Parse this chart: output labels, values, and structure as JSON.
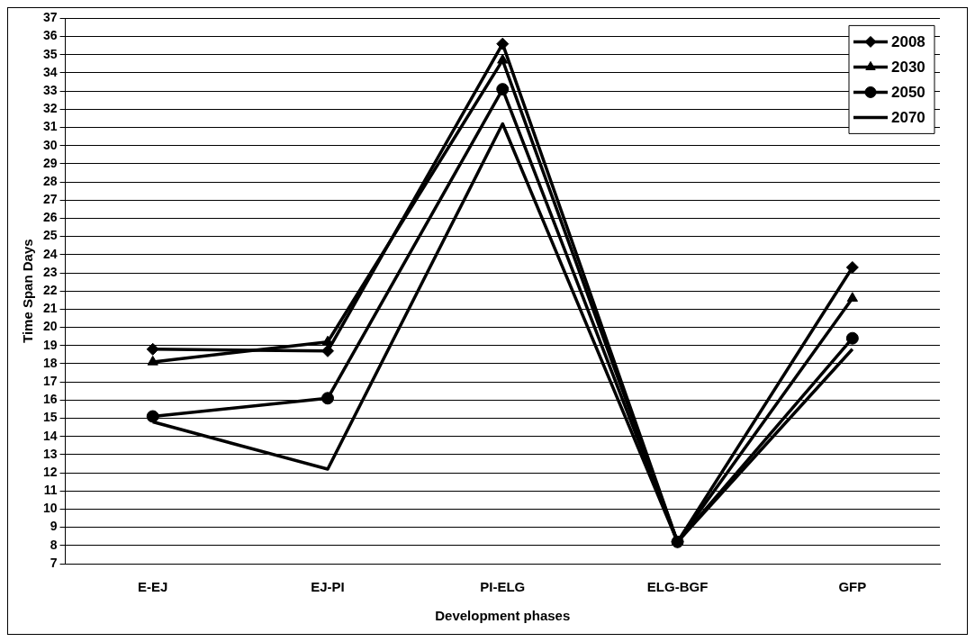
{
  "chart_data": {
    "type": "line",
    "xlabel": "Development phases",
    "ylabel": "Time Span Days",
    "categories": [
      "E-EJ",
      "EJ-PI",
      "PI-ELG",
      "ELG-BGF",
      "GFP"
    ],
    "series": [
      {
        "name": "2008",
        "color": "#000000",
        "marker": "diamond",
        "values": [
          18.8,
          18.7,
          35.6,
          8.2,
          23.3
        ]
      },
      {
        "name": "2030",
        "color": "#000000",
        "marker": "triangle",
        "values": [
          18.1,
          19.2,
          34.7,
          8.2,
          21.6
        ]
      },
      {
        "name": "2050",
        "color": "#000000",
        "marker": "circle",
        "values": [
          15.1,
          16.1,
          33.1,
          8.2,
          19.4
        ]
      },
      {
        "name": "2070",
        "color": "#000000",
        "marker": "none",
        "values": [
          14.8,
          12.2,
          31.2,
          8.2,
          18.8
        ]
      }
    ],
    "ylim": [
      7,
      37
    ],
    "yticks": [
      7,
      8,
      9,
      10,
      11,
      12,
      13,
      14,
      15,
      16,
      17,
      18,
      19,
      20,
      21,
      22,
      23,
      24,
      25,
      26,
      27,
      28,
      29,
      30,
      31,
      32,
      33,
      34,
      35,
      36,
      37
    ],
    "grid": "y",
    "legend": "top right",
    "line_style": "solid"
  }
}
